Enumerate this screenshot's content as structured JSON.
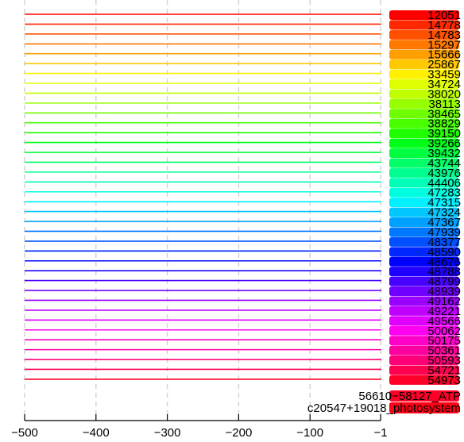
{
  "chart_data": {
    "type": "bar",
    "orientation": "horizontal",
    "grid": true,
    "xlim": [
      -500,
      0
    ],
    "x_ticks": [
      -500,
      -400,
      -300,
      -200,
      -100,
      -1
    ],
    "x_tick_labels": [
      "−500",
      "−400",
      "−300",
      "−200",
      "−100",
      "−1"
    ],
    "row_labels": [
      "12051",
      "14778",
      "14783",
      "15297",
      "15666",
      "25867",
      "33459",
      "34724",
      "38020",
      "38113",
      "38465",
      "38829",
      "39150",
      "39266",
      "39432",
      "43744",
      "43976",
      "44406",
      "47283",
      "47315",
      "47324",
      "47367",
      "47939",
      "48377",
      "48590",
      "48676",
      "48788",
      "48799",
      "48939",
      "49162",
      "49221",
      "49566",
      "50062",
      "50175",
      "50361",
      "50593",
      "54721",
      "54973"
    ],
    "values": [
      -500,
      -500,
      -500,
      -500,
      -500,
      -500,
      -500,
      -500,
      -500,
      -500,
      -500,
      -500,
      -500,
      -500,
      -500,
      -500,
      -500,
      -500,
      -500,
      -500,
      -500,
      -500,
      -500,
      -500,
      -500,
      -500,
      -500,
      -500,
      -500,
      -500,
      -500,
      -500,
      -500,
      -500,
      -500,
      -500,
      -500,
      -500
    ],
    "colors": [
      "#FF0000",
      "#FF2800",
      "#FF5000",
      "#FF7800",
      "#FFA000",
      "#FFC800",
      "#FFF000",
      "#E0FF00",
      "#C0FF00",
      "#98FF00",
      "#70FF00",
      "#48FF00",
      "#20FF00",
      "#00FF18",
      "#00FF40",
      "#00FF68",
      "#00FF90",
      "#00FFB8",
      "#00FFE0",
      "#00F0FF",
      "#00C8FF",
      "#00A0FF",
      "#0078FF",
      "#0050FF",
      "#0028FF",
      "#0000FF",
      "#2000FF",
      "#4800FF",
      "#7000FF",
      "#9800FF",
      "#C000FF",
      "#E000FF",
      "#FF00F0",
      "#FF00C8",
      "#FF00A0",
      "#FF0078",
      "#FF0050",
      "#FF0028"
    ],
    "footer_labels": [
      "56610−58127_ATP",
      "c20547+19018_photosystem"
    ],
    "footer_colors": [
      "#FF0028",
      "#FF0014"
    ]
  }
}
